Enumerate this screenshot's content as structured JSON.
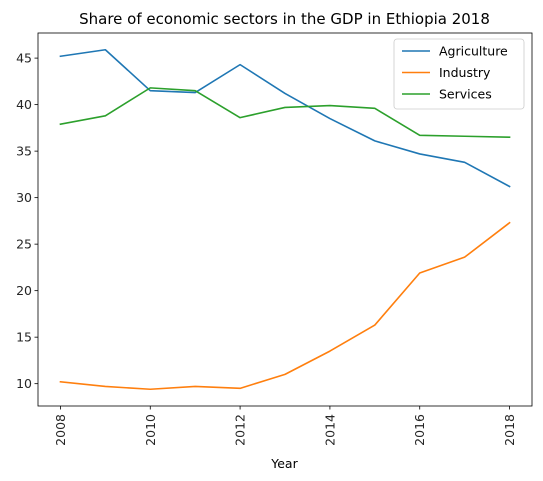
{
  "chart_data": {
    "type": "line",
    "title": "Share of economic sectors in the GDP in Ethiopia 2018",
    "xlabel": "Year",
    "ylabel": "",
    "x": [
      2008,
      2009,
      2010,
      2011,
      2012,
      2013,
      2014,
      2015,
      2016,
      2017,
      2018
    ],
    "xticks": [
      "2008",
      "2010",
      "2012",
      "2014",
      "2016",
      "2018"
    ],
    "yticks": [
      "10",
      "15",
      "20",
      "25",
      "30",
      "35",
      "40",
      "45"
    ],
    "xlim": [
      2007.5,
      2018.5
    ],
    "ylim": [
      7.6,
      47.7
    ],
    "grid": false,
    "legend_position": "top-right",
    "series": [
      {
        "name": "Agriculture",
        "color": "#1f77b4",
        "values": [
          45.2,
          45.9,
          41.5,
          41.3,
          44.3,
          41.2,
          38.5,
          36.1,
          34.7,
          33.8,
          31.2
        ]
      },
      {
        "name": "Industry",
        "color": "#ff7f0e",
        "values": [
          10.2,
          9.7,
          9.4,
          9.7,
          9.5,
          11.0,
          13.5,
          16.3,
          21.9,
          23.6,
          27.3
        ]
      },
      {
        "name": "Services",
        "color": "#2ca02c",
        "values": [
          37.9,
          38.8,
          41.8,
          41.5,
          38.6,
          39.7,
          39.9,
          39.6,
          36.7,
          36.6,
          36.5
        ]
      }
    ]
  }
}
